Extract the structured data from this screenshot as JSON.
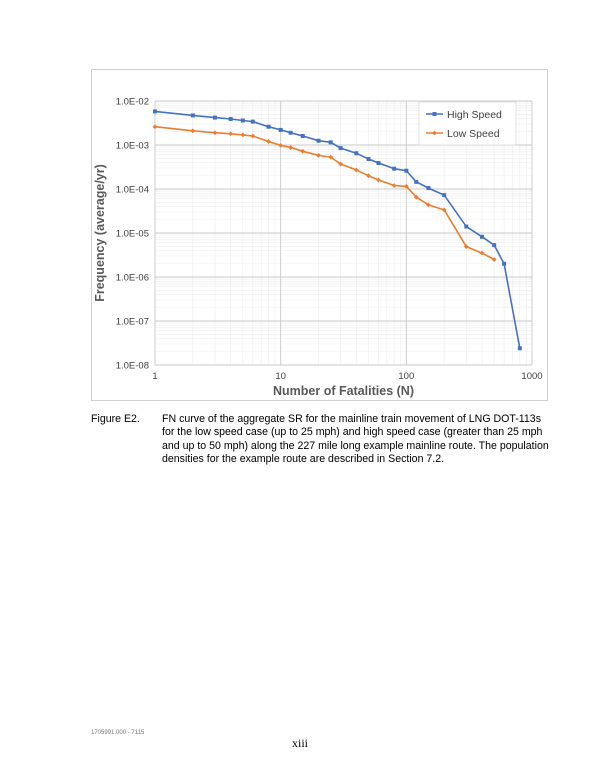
{
  "chart_data": {
    "type": "line",
    "xlabel": "Number of Fatalities (N)",
    "ylabel": "Frequency (average/yr)",
    "xscale": "log",
    "yscale": "log",
    "xlim": [
      1,
      1000
    ],
    "ylim": [
      1e-08,
      0.01
    ],
    "x_ticks": [
      "1",
      "10",
      "100",
      "1000"
    ],
    "y_ticks": [
      "1.0E-08",
      "1.0E-07",
      "1.0E-06",
      "1.0E-05",
      "1.0E-04",
      "1.0E-03",
      "1.0E-02"
    ],
    "grid": true,
    "legend_position": "top-right",
    "series": [
      {
        "name": "High Speed",
        "color": "#4472C4",
        "marker": "square",
        "x": [
          1,
          2,
          3,
          4,
          5,
          6,
          8,
          10,
          12,
          15,
          20,
          25,
          30,
          40,
          50,
          60,
          80,
          100,
          120,
          150,
          200,
          300,
          400,
          500,
          600,
          800
        ],
        "y": [
          0.0058,
          0.0047,
          0.0042,
          0.0039,
          0.0036,
          0.0034,
          0.0026,
          0.0022,
          0.0019,
          0.0016,
          0.00125,
          0.00115,
          0.00085,
          0.00065,
          0.00048,
          0.00039,
          0.00029,
          0.00026,
          0.000145,
          0.000105,
          7.25e-05,
          1.4e-05,
          8.2e-06,
          5.3e-06,
          2e-06,
          2.4e-08
        ]
      },
      {
        "name": "Low Speed",
        "color": "#ED7D31",
        "marker": "diamond",
        "x": [
          1,
          2,
          3,
          4,
          5,
          6,
          8,
          10,
          12,
          15,
          20,
          25,
          30,
          40,
          50,
          60,
          80,
          100,
          120,
          150,
          200,
          300,
          400,
          500
        ],
        "y": [
          0.0026,
          0.0021,
          0.0019,
          0.0018,
          0.0017,
          0.0016,
          0.0012,
          0.00098,
          0.00088,
          0.00072,
          0.00058,
          0.00053,
          0.00037,
          0.00027,
          0.0002,
          0.00016,
          0.00012,
          0.000115,
          6.55e-05,
          4.35e-05,
          3.35e-05,
          4.9e-06,
          3.5e-06,
          2.5e-06
        ]
      }
    ]
  },
  "caption": {
    "label": "Figure E2.",
    "text": "FN curve of the aggregate SR for the mainline train movement of LNG DOT-113s for the low speed case (up to 25 mph) and high speed case (greater than 25 mph and up to 50 mph) along the 227 mile long example mainline route. The population densities for the example route are described in Section 7.2."
  },
  "footer": {
    "code": "1705991.000 - 7115",
    "page": "xiii"
  }
}
